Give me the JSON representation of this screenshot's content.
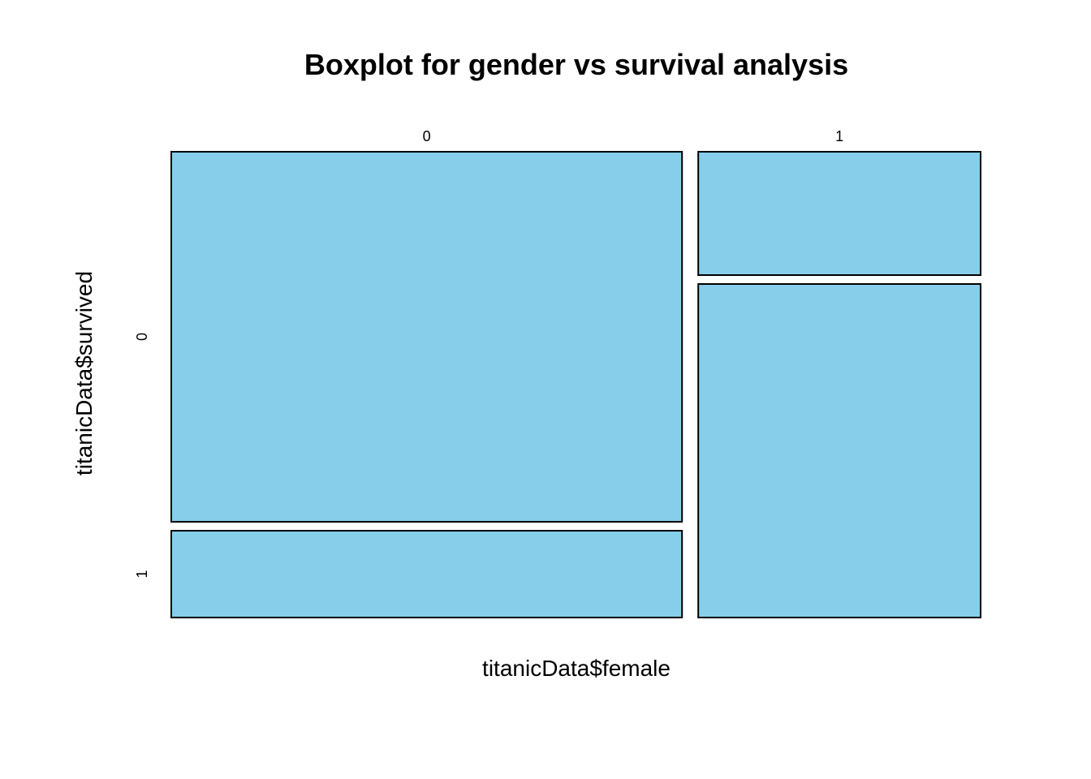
{
  "chart_data": {
    "type": "mosaic",
    "title": "Boxplot for gender vs survival analysis",
    "xlabel": "titanicData$female",
    "ylabel": "titanicData$survived",
    "x_categories": [
      "0",
      "1"
    ],
    "y_categories": [
      "0",
      "1"
    ],
    "x_proportions": [
      0.644,
      0.356
    ],
    "cells": [
      {
        "x": "0",
        "y": "0",
        "proportion_within_x": 0.81
      },
      {
        "x": "0",
        "y": "1",
        "proportion_within_x": 0.19
      },
      {
        "x": "1",
        "y": "0",
        "proportion_within_x": 0.27
      },
      {
        "x": "1",
        "y": "1",
        "proportion_within_x": 0.73
      }
    ],
    "fill_color": "#87CEEB",
    "border_color": "#000000",
    "grid": false,
    "legend": "none"
  }
}
